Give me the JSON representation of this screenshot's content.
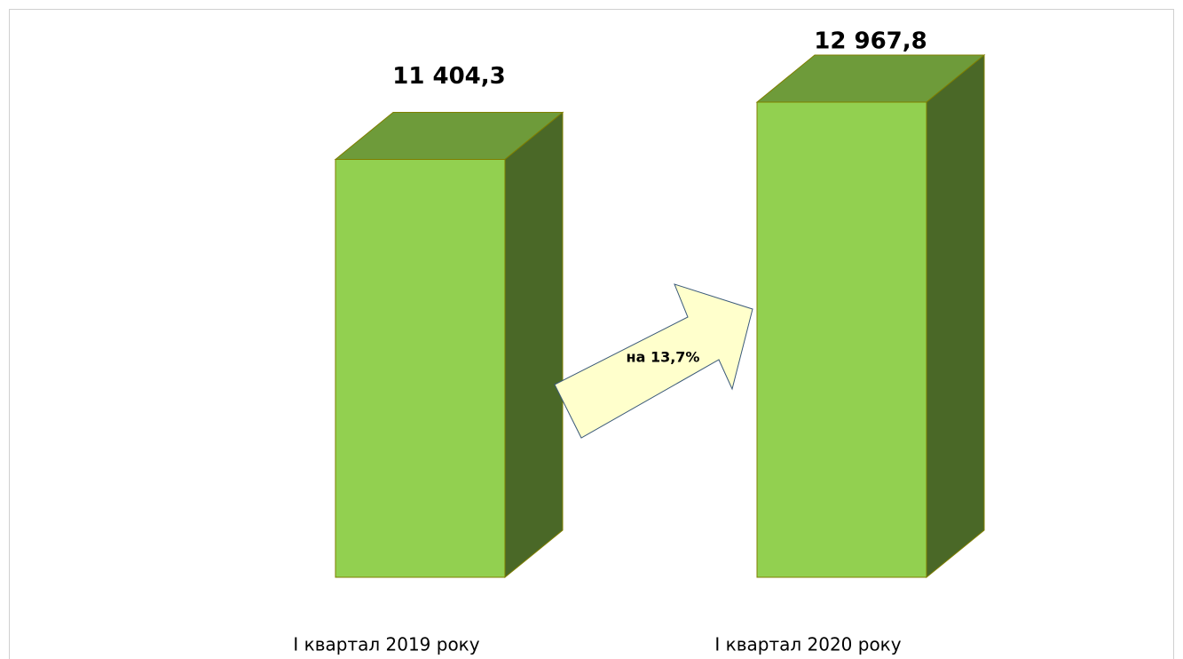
{
  "chart_data": {
    "type": "bar3d",
    "categories": [
      "І квартал 2019 року",
      "І квартал 2020 року"
    ],
    "values": [
      11404.3,
      12967.8
    ],
    "value_labels": [
      "11 404,3",
      "12 967,8"
    ],
    "annotation": "на 13,7%",
    "color": "#92d050"
  }
}
